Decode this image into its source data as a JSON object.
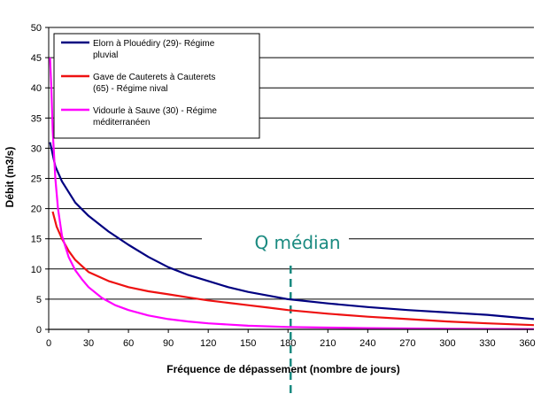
{
  "chart_data": {
    "type": "line",
    "xlabel": "Fréquence de dépassement (nombre de jours)",
    "ylabel": "Débit (m3/s)",
    "xlim": [
      0,
      365
    ],
    "ylim": [
      0,
      50
    ],
    "x_ticks": [
      "0",
      "30",
      "60",
      "90",
      "120",
      "150",
      "180",
      "210",
      "240",
      "270",
      "300",
      "330",
      "360"
    ],
    "y_ticks": [
      "0",
      "5",
      "10",
      "15",
      "20",
      "25",
      "30",
      "35",
      "40",
      "45",
      "50"
    ],
    "grid": "horizontal",
    "legend_position": "top-left",
    "annotation": {
      "text": "Q médian",
      "x": 182
    },
    "series": [
      {
        "name_lines": [
          "Elorn à Plouédiry (29)- Régime",
          "pluvial"
        ],
        "color": "#000080",
        "x": [
          1,
          5,
          10,
          20,
          30,
          45,
          60,
          75,
          90,
          105,
          120,
          135,
          150,
          165,
          180,
          210,
          240,
          270,
          300,
          330,
          365
        ],
        "y": [
          31,
          27,
          24.5,
          21,
          18.8,
          16.2,
          14,
          12,
          10.3,
          9,
          8,
          7,
          6.2,
          5.6,
          5,
          4.3,
          3.7,
          3.2,
          2.8,
          2.4,
          1.7
        ]
      },
      {
        "name_lines": [
          "Gave de Cauterets à Cauterets",
          "(65) - Régime nival"
        ],
        "color": "#ee1111",
        "x": [
          3,
          6,
          10,
          15,
          20,
          25,
          30,
          45,
          60,
          75,
          90,
          105,
          120,
          135,
          150,
          165,
          180,
          210,
          240,
          270,
          300,
          330,
          365
        ],
        "y": [
          19.5,
          17,
          15,
          13,
          11.5,
          10.5,
          9.5,
          8,
          7,
          6.3,
          5.8,
          5.3,
          4.8,
          4.4,
          4,
          3.6,
          3.2,
          2.6,
          2.1,
          1.7,
          1.3,
          1,
          0.7
        ]
      },
      {
        "name_lines": [
          "Vidourle à Sauve (30) - Régime",
          "méditerranéen"
        ],
        "color": "#ff00ff",
        "x": [
          1,
          2,
          3,
          5,
          7,
          10,
          15,
          20,
          25,
          30,
          40,
          50,
          60,
          75,
          90,
          105,
          120,
          150,
          180,
          210,
          240,
          270,
          300,
          365
        ],
        "y": [
          45,
          40,
          33,
          25,
          20,
          15.5,
          12,
          9.8,
          8.3,
          7,
          5.2,
          4,
          3.2,
          2.3,
          1.7,
          1.3,
          1,
          0.6,
          0.4,
          0.3,
          0.2,
          0.15,
          0.1,
          0.05
        ]
      }
    ]
  }
}
